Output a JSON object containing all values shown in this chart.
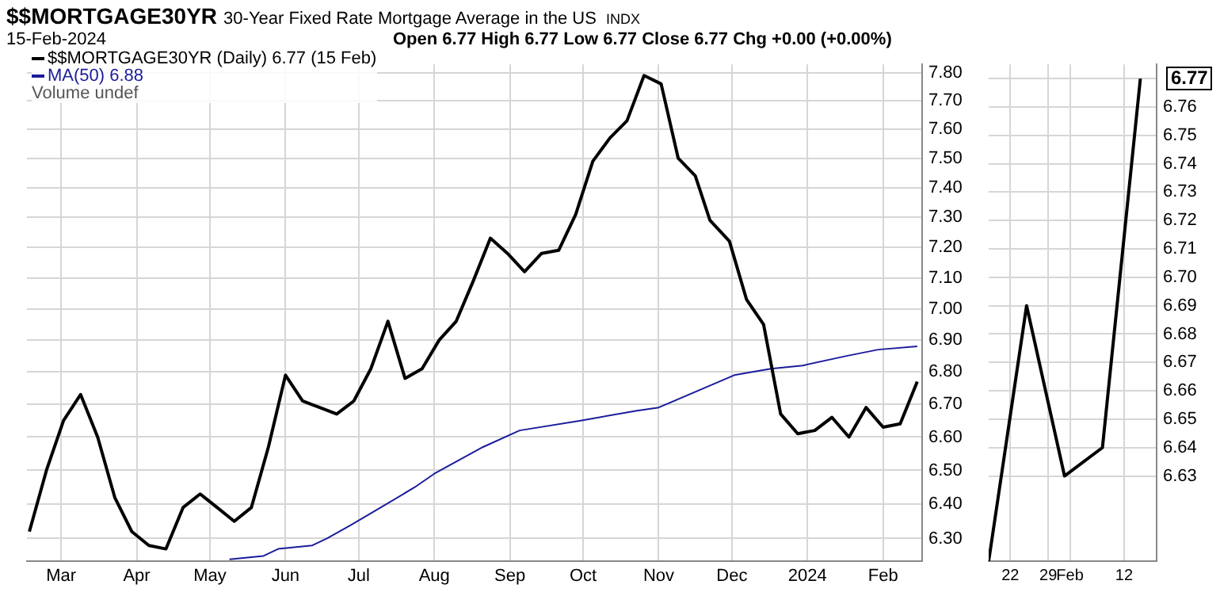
{
  "chart_data": [
    {
      "type": "line",
      "title": "$$MORTGAGE30YR",
      "subtitle": "30-Year Fixed Rate Mortgage Average in the US",
      "annotations": [
        "INDX",
        "15-Feb-2024",
        "Open 6.77 High 6.77 Low 6.77 Close 6.77 Chg +0.00 (+0.00%)",
        "Volume undef"
      ],
      "log": true,
      "grid": true,
      "legend": "top left",
      "xlim": [
        "2023-02-15",
        "2024-02-17"
      ],
      "xticks": [
        {
          "value": "2023-03-01",
          "label": "Mar"
        },
        {
          "value": "2023-04-01",
          "label": "Apr"
        },
        {
          "value": "2023-05-01",
          "label": "May"
        },
        {
          "value": "2023-06-01",
          "label": "Jun"
        },
        {
          "value": "2023-07-01",
          "label": "Jul"
        },
        {
          "value": "2023-08-01",
          "label": "Aug"
        },
        {
          "value": "2023-09-01",
          "label": "Sep"
        },
        {
          "value": "2023-10-01",
          "label": "Oct"
        },
        {
          "value": "2023-11-01",
          "label": "Nov"
        },
        {
          "value": "2023-12-01",
          "label": "Dec"
        },
        {
          "value": "2024-01-01",
          "label": "2024"
        },
        {
          "value": "2024-02-01",
          "label": "Feb"
        }
      ],
      "ylim": [
        6.235,
        7.83
      ],
      "yticks": [
        {
          "value": 6.3,
          "label": "6.30"
        },
        {
          "value": 6.4,
          "label": "6.40"
        },
        {
          "value": 6.5,
          "label": "6.50"
        },
        {
          "value": 6.6,
          "label": "6.60"
        },
        {
          "value": 6.7,
          "label": "6.70"
        },
        {
          "value": 6.8,
          "label": "6.80"
        },
        {
          "value": 6.9,
          "label": "6.90"
        },
        {
          "value": 7.0,
          "label": "7.00"
        },
        {
          "value": 7.1,
          "label": "7.10"
        },
        {
          "value": 7.2,
          "label": "7.20"
        },
        {
          "value": 7.3,
          "label": "7.30"
        },
        {
          "value": 7.4,
          "label": "7.40"
        },
        {
          "value": 7.5,
          "label": "7.50"
        },
        {
          "value": 7.6,
          "label": "7.60"
        },
        {
          "value": 7.7,
          "label": "7.70"
        },
        {
          "value": 7.8,
          "label": "7.80"
        }
      ],
      "series": [
        {
          "name": "$$MORTGAGE30YR (Daily) 6.77 (15 Feb)",
          "color": "#000000",
          "x": [
            "2023-02-16",
            "2023-02-23",
            "2023-03-02",
            "2023-03-09",
            "2023-03-16",
            "2023-03-23",
            "2023-03-30",
            "2023-04-06",
            "2023-04-13",
            "2023-04-20",
            "2023-04-27",
            "2023-05-04",
            "2023-05-11",
            "2023-05-18",
            "2023-05-25",
            "2023-06-01",
            "2023-06-08",
            "2023-06-15",
            "2023-06-22",
            "2023-06-29",
            "2023-07-06",
            "2023-07-13",
            "2023-07-20",
            "2023-07-27",
            "2023-08-03",
            "2023-08-10",
            "2023-08-17",
            "2023-08-24",
            "2023-08-31",
            "2023-09-07",
            "2023-09-14",
            "2023-09-21",
            "2023-09-28",
            "2023-10-05",
            "2023-10-12",
            "2023-10-19",
            "2023-10-26",
            "2023-11-02",
            "2023-11-09",
            "2023-11-16",
            "2023-11-22",
            "2023-11-30",
            "2023-12-07",
            "2023-12-14",
            "2023-12-21",
            "2023-12-28",
            "2024-01-04",
            "2024-01-11",
            "2024-01-18",
            "2024-01-25",
            "2024-02-01",
            "2024-02-08",
            "2024-02-15"
          ],
          "values": [
            6.32,
            6.5,
            6.65,
            6.73,
            6.6,
            6.42,
            6.32,
            6.28,
            6.27,
            6.39,
            6.43,
            6.39,
            6.35,
            6.39,
            6.57,
            6.79,
            6.71,
            6.69,
            6.67,
            6.71,
            6.81,
            6.96,
            6.78,
            6.81,
            6.9,
            6.96,
            7.09,
            7.23,
            7.18,
            7.12,
            7.18,
            7.19,
            7.31,
            7.49,
            7.57,
            7.63,
            7.79,
            7.76,
            7.5,
            7.44,
            7.29,
            7.22,
            7.03,
            6.95,
            6.67,
            6.61,
            6.62,
            6.66,
            6.6,
            6.69,
            6.63,
            6.64,
            6.77
          ]
        },
        {
          "name": "MA(50) 6.88",
          "color": "#1c1c9c",
          "x": [
            "2023-05-09",
            "2023-05-23",
            "2023-05-29",
            "2023-06-12",
            "2023-06-18",
            "2023-06-28",
            "2023-07-10",
            "2023-07-24",
            "2023-08-01",
            "2023-08-21",
            "2023-09-05",
            "2023-09-30",
            "2023-10-23",
            "2023-11-01",
            "2023-12-02",
            "2023-12-17",
            "2023-12-30",
            "2024-01-17",
            "2024-01-30",
            "2024-02-15"
          ],
          "values": [
            6.24,
            6.25,
            6.27,
            6.28,
            6.3,
            6.34,
            6.39,
            6.45,
            6.49,
            6.57,
            6.62,
            6.65,
            6.68,
            6.69,
            6.79,
            6.81,
            6.82,
            6.85,
            6.87,
            6.88
          ]
        }
      ]
    },
    {
      "type": "line",
      "grid": true,
      "xlim": [
        "2024-01-18",
        "2024-02-18"
      ],
      "xticks": [
        {
          "value": "2024-01-22",
          "label": "22"
        },
        {
          "value": "2024-01-29",
          "label": "29"
        },
        {
          "value": "2024-02-02",
          "label": "Feb"
        },
        {
          "value": "2024-02-12",
          "label": "12"
        }
      ],
      "ylim": [
        6.6,
        6.775
      ],
      "yticks": [
        6.63,
        6.64,
        6.65,
        6.66,
        6.67,
        6.68,
        6.69,
        {
          "value": 6.7,
          "label": "6.70"
        },
        6.71,
        6.72,
        6.73,
        6.74,
        6.75,
        6.76,
        {
          "value": 6.77,
          "label": null
        }
      ],
      "annotations": [
        {
          "text": "6.77",
          "x": "2024-02-15",
          "y": 6.77
        }
      ],
      "series": [
        {
          "color": "#000000",
          "x": [
            "2024-01-18",
            "2024-01-25",
            "2024-02-01",
            "2024-02-08",
            "2024-02-15"
          ],
          "values": [
            6.6,
            6.69,
            6.63,
            6.64,
            6.77
          ]
        }
      ]
    }
  ]
}
